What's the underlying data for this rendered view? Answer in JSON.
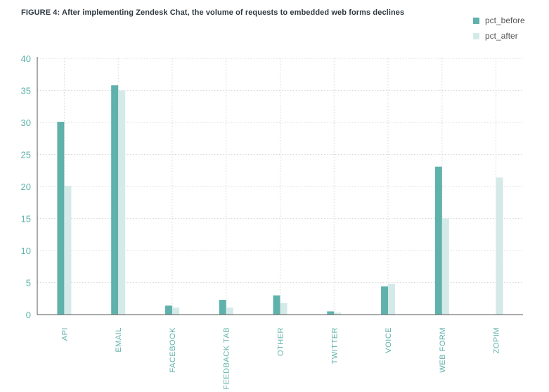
{
  "title": "FIGURE 4: After implementing Zendesk Chat, the volume of requests to embedded web forms declines",
  "chart_data": {
    "type": "bar",
    "title": "FIGURE 4: After implementing Zendesk Chat, the volume of requests to embedded web forms declines",
    "xlabel": "",
    "ylabel": "",
    "ylim": [
      0,
      40
    ],
    "yticks": [
      0,
      5,
      10,
      15,
      20,
      25,
      30,
      35,
      40
    ],
    "grid": true,
    "legend_position": "top-right",
    "categories": [
      "API",
      "EMAIL",
      "FACEBOOK",
      "FEEDBACK TAB",
      "OTHER",
      "TWITTER",
      "VOICE",
      "WEB FORM",
      "ZOPIM"
    ],
    "series": [
      {
        "name": "pct_before",
        "color": "#5fb2ab",
        "values": [
          30.1,
          35.8,
          1.4,
          2.3,
          3.0,
          0.5,
          4.4,
          23.1,
          0.0
        ]
      },
      {
        "name": "pct_after",
        "color": "#d4eae8",
        "values": [
          20.1,
          35.0,
          1.1,
          1.1,
          1.8,
          0.3,
          4.8,
          15.0,
          21.4
        ]
      }
    ],
    "axis_color": "#5fb2ab"
  }
}
